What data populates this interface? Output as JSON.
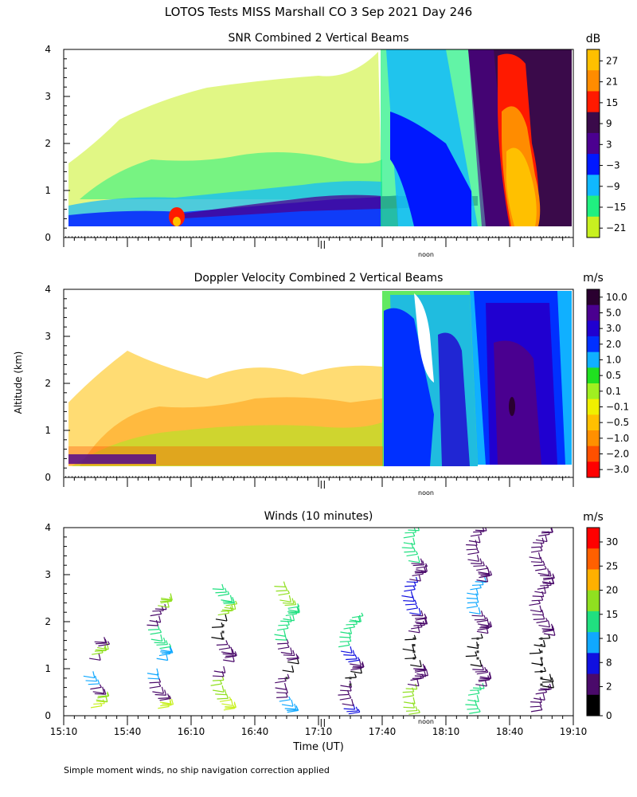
{
  "page": {
    "title": "LOTOS Tests MISS Marshall CO   3 Sep 2021 Day 246",
    "ylabel": "Altitude (km)",
    "xlabel": "Time (UT)",
    "footnote": "Simple moment winds, no ship navigation correction applied",
    "noon_label": "noon"
  },
  "chart_data": [
    {
      "type": "heatmap",
      "title": "SNR Combined 2 Vertical Beams",
      "colorbar_unit": "dB",
      "colorbar_labels": [
        "27",
        "21",
        "15",
        "9",
        "3",
        "−3",
        "−9",
        "−15",
        "−21"
      ],
      "colorbar_colors": [
        "#ffc000",
        "#ff8c00",
        "#ff1a00",
        "#3a0a4a",
        "#4b0090",
        "#0018ff",
        "#10b8ff",
        "#20f080",
        "#c8f020"
      ],
      "ylim": [
        0,
        4
      ],
      "y_ticks": [
        "0",
        "1",
        "2",
        "3",
        "4"
      ],
      "x_range": [
        "15:10",
        "19:10"
      ],
      "data_start": "15:13",
      "data_end": "19:06"
    },
    {
      "type": "heatmap",
      "title": "Doppler Velocity Combined 2 Vertical Beams",
      "colorbar_unit": "m/s",
      "colorbar_labels": [
        "10.0",
        "5.0",
        "3.0",
        "2.0",
        "1.0",
        "0.5",
        "0.1",
        "−0.1",
        "−0.5",
        "−1.0",
        "−2.0",
        "−3.0"
      ],
      "colorbar_colors": [
        "#2a0030",
        "#4a0090",
        "#2000d0",
        "#0030ff",
        "#10b0ff",
        "#20e020",
        "#a0f020",
        "#f0f000",
        "#ffc000",
        "#ff9000",
        "#ff5000",
        "#ff0000"
      ],
      "ylim": [
        0,
        4
      ],
      "y_ticks": [
        "0",
        "1",
        "2",
        "3",
        "4"
      ],
      "x_range": [
        "15:10",
        "19:10"
      ],
      "data_start": "15:13",
      "data_end": "19:06"
    },
    {
      "type": "scatter",
      "title": "Winds (10 minutes)",
      "colorbar_unit": "m/s",
      "colorbar_labels": [
        "30",
        "25",
        "20",
        "15",
        "10",
        "8",
        "2",
        "0"
      ],
      "colorbar_colors": [
        "#ff0000",
        "#ff6000",
        "#ffb000",
        "#90e020",
        "#20e080",
        "#10a8ff",
        "#1010e0",
        "#4a0a6a",
        "#000000"
      ],
      "ylim": [
        0,
        4
      ],
      "y_ticks": [
        "0",
        "1",
        "2",
        "3",
        "4"
      ],
      "x_ticks": [
        "15:10",
        "15:40",
        "16:10",
        "16:40",
        "17:10",
        "17:40",
        "18:10",
        "18:40",
        "19:10"
      ],
      "x_range": [
        "15:10",
        "19:10"
      ],
      "profile_times": [
        "15:25",
        "15:55",
        "16:25",
        "16:55",
        "17:25",
        "17:55",
        "18:25",
        "18:55"
      ]
    }
  ]
}
